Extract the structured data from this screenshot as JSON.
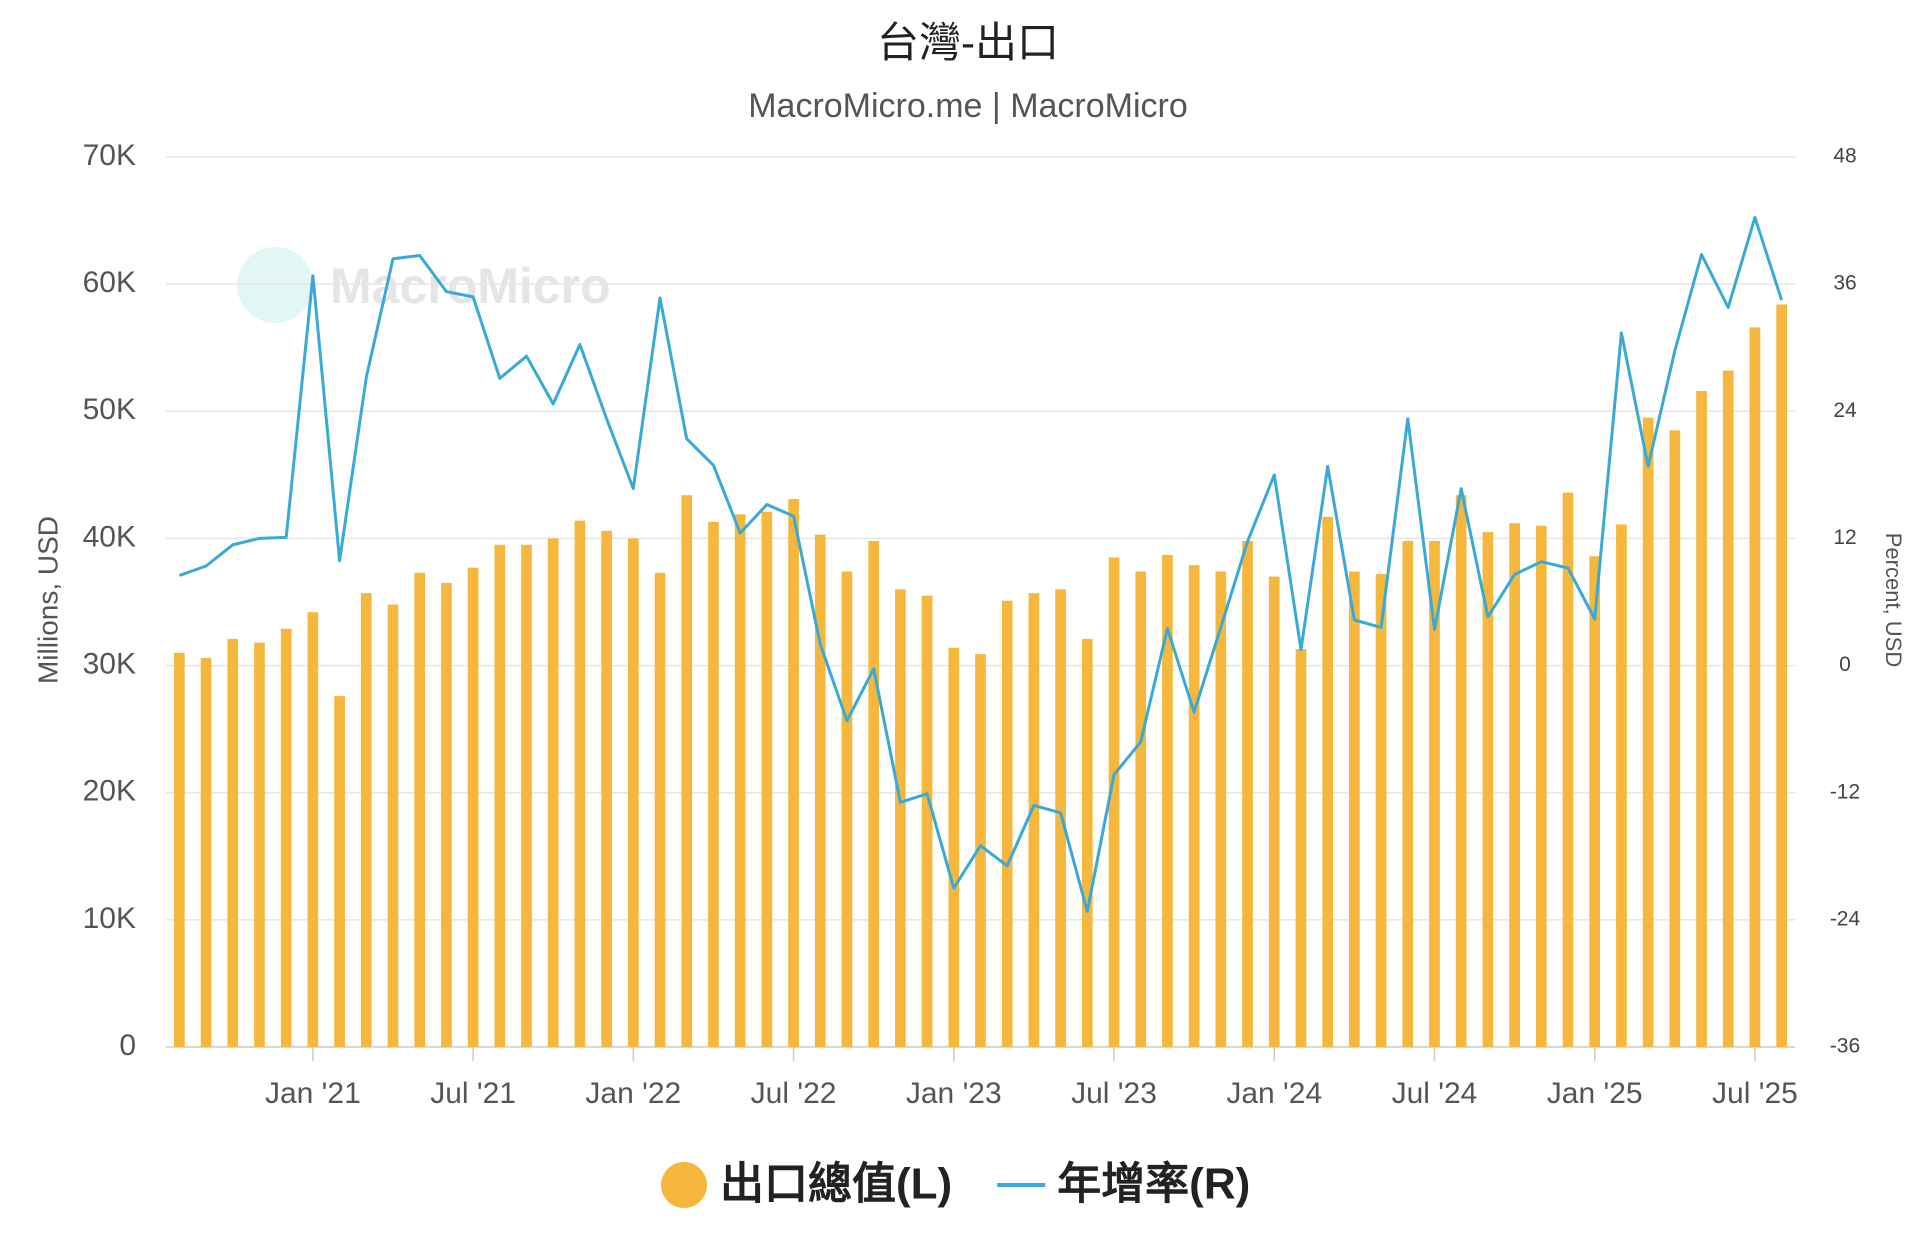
{
  "chart_data": {
    "type": "bar",
    "title": "台灣-出口",
    "subtitle": "MacroMicro.me | MacroMicro",
    "watermark": "MacroMicro",
    "y_label": "Millions, USD",
    "y2_label": "Percent, USD",
    "categories": [
      null,
      null,
      null,
      null,
      null,
      "Jan '21",
      null,
      null,
      null,
      null,
      null,
      "Jul '21",
      null,
      null,
      null,
      null,
      null,
      "Jan '22",
      null,
      null,
      null,
      null,
      null,
      "Jul '22",
      null,
      null,
      null,
      null,
      null,
      "Jan '23",
      null,
      null,
      null,
      null,
      null,
      "Jul '23",
      null,
      null,
      null,
      null,
      null,
      "Jan '24",
      null,
      null,
      null,
      null,
      null,
      "Jul '24",
      null,
      null,
      null,
      null,
      null,
      "Jan '25",
      null,
      null,
      null,
      null,
      null,
      "Jul '25",
      null
    ],
    "series": [
      {
        "name": "出口總值(L)",
        "type": "bar",
        "color": "#f5b83d",
        "values": [
          31000,
          30600,
          32100,
          31800,
          32900,
          34200,
          27600,
          35700,
          34800,
          37300,
          36500,
          37700,
          39500,
          39500,
          40000,
          41400,
          40600,
          40000,
          37300,
          43400,
          41300,
          41900,
          42100,
          43100,
          40300,
          37400,
          39800,
          36000,
          35500,
          31400,
          30900,
          35100,
          35700,
          36000,
          32100,
          38500,
          37400,
          38700,
          37900,
          37400,
          39800,
          37000,
          31300,
          41700,
          37400,
          37200,
          39800,
          39800,
          43400,
          40500,
          41200,
          41000,
          43600,
          38600,
          41100,
          49500,
          48500,
          51600,
          53200,
          56600,
          58400
        ]
      },
      {
        "name": "年增率(R)",
        "type": "line",
        "axis": "y2",
        "color": "#3aa9d6",
        "values": [
          8.5,
          9.4,
          11.4,
          12.0,
          12.1,
          36.8,
          9.9,
          27.2,
          38.4,
          38.7,
          35.3,
          34.8,
          27.1,
          29.2,
          24.7,
          30.3,
          23.3,
          16.7,
          34.7,
          21.4,
          18.9,
          12.5,
          15.2,
          14.1,
          2.0,
          -5.2,
          -0.3,
          -12.9,
          -12.1,
          -21.0,
          -17.0,
          -18.9,
          -13.2,
          -13.9,
          -23.2,
          -10.3,
          -7.2,
          3.5,
          -4.4,
          3.6,
          11.7,
          18.0,
          1.5,
          18.8,
          4.3,
          3.6,
          23.3,
          3.4,
          16.7,
          4.6,
          8.6,
          9.8,
          9.2,
          4.4,
          31.4,
          18.8,
          29.7,
          38.8,
          33.8,
          42.3,
          34.5
        ]
      }
    ],
    "ylim": [
      0,
      70000
    ],
    "yticks": [
      0,
      {
        "value": 10000,
        "label": "10K"
      },
      {
        "value": 20000,
        "label": "20K"
      },
      {
        "value": 30000,
        "label": "30K"
      },
      {
        "value": 40000,
        "label": "40K"
      },
      {
        "value": 50000,
        "label": "50K"
      },
      {
        "value": 60000,
        "label": "60K"
      },
      {
        "value": 70000,
        "label": "70K"
      }
    ],
    "y2lim": [
      -36,
      48
    ],
    "y2ticks": [
      -36,
      -24,
      -12,
      0,
      12,
      24,
      36,
      48
    ],
    "grid": true
  }
}
